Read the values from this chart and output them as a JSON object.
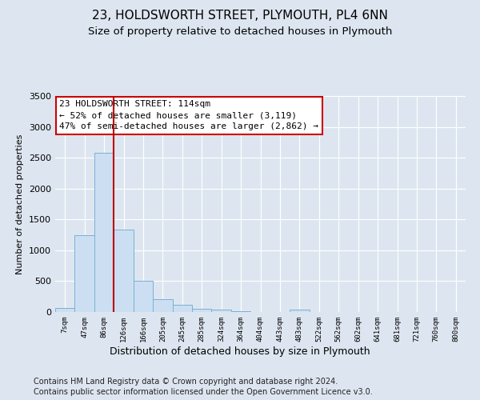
{
  "title1": "23, HOLDSWORTH STREET, PLYMOUTH, PL4 6NN",
  "title2": "Size of property relative to detached houses in Plymouth",
  "xlabel": "Distribution of detached houses by size in Plymouth",
  "ylabel": "Number of detached properties",
  "footer1": "Contains HM Land Registry data © Crown copyright and database right 2024.",
  "footer2": "Contains public sector information licensed under the Open Government Licence v3.0.",
  "annotation_title": "23 HOLDSWORTH STREET: 114sqm",
  "annotation_line1": "← 52% of detached houses are smaller (3,119)",
  "annotation_line2": "47% of semi-detached houses are larger (2,862) →",
  "bar_labels": [
    "7sqm",
    "47sqm",
    "86sqm",
    "126sqm",
    "166sqm",
    "205sqm",
    "245sqm",
    "285sqm",
    "324sqm",
    "364sqm",
    "404sqm",
    "443sqm",
    "483sqm",
    "522sqm",
    "562sqm",
    "602sqm",
    "641sqm",
    "681sqm",
    "721sqm",
    "760sqm",
    "800sqm"
  ],
  "bar_values": [
    60,
    1240,
    2580,
    1340,
    500,
    210,
    120,
    55,
    35,
    10,
    5,
    3,
    40,
    2,
    1,
    0,
    0,
    0,
    0,
    0,
    0
  ],
  "bar_color": "#ccdff2",
  "bar_edge_color": "#7bafd4",
  "red_line_x": 3.0,
  "ylim": [
    0,
    3500
  ],
  "yticks": [
    0,
    500,
    1000,
    1500,
    2000,
    2500,
    3000,
    3500
  ],
  "background_color": "#dde6f0",
  "plot_background": "#dde6f0",
  "grid_color": "#ffffff",
  "annotation_box_color": "#ffffff",
  "annotation_box_edge": "#cc0000",
  "title1_fontsize": 11,
  "title2_fontsize": 9.5,
  "annotation_fontsize": 8,
  "footer_fontsize": 7,
  "ylabel_fontsize": 8,
  "xlabel_fontsize": 9
}
